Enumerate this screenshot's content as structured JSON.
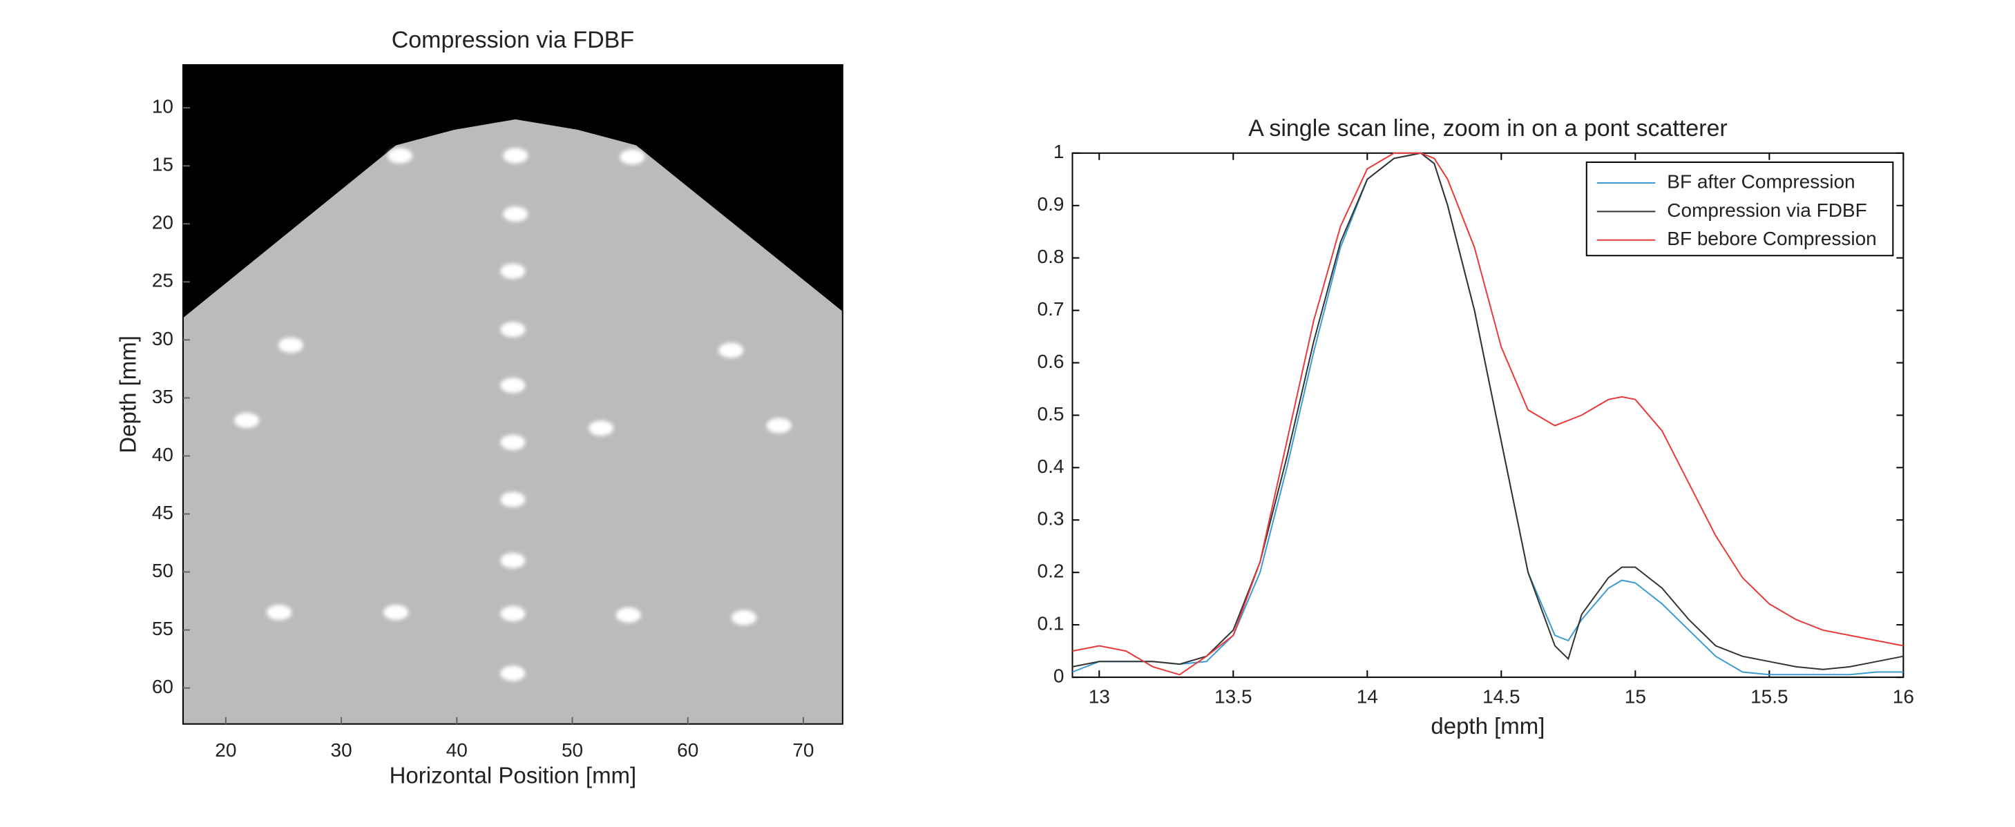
{
  "chart_data": [
    {
      "type": "image",
      "title": "Compression via FDBF",
      "xlabel": "Horizontal Position [mm]",
      "ylabel": "Depth [mm]",
      "xlim": [
        16.3,
        73.4
      ],
      "ylim": [
        63.1,
        6.3
      ],
      "xticks": [
        20,
        30,
        40,
        50,
        60,
        70
      ],
      "yticks": [
        10,
        15,
        20,
        25,
        30,
        35,
        40,
        45,
        50,
        55,
        60
      ]
    },
    {
      "type": "line",
      "title": "A single scan line, zoom in on a pont scatterer",
      "xlabel": "depth [mm]",
      "x": [
        12.9,
        13.0,
        13.1,
        13.2,
        13.3,
        13.4,
        13.5,
        13.6,
        13.7,
        13.8,
        13.9,
        14.0,
        14.1,
        14.2,
        14.25,
        14.3,
        14.4,
        14.5,
        14.6,
        14.7,
        14.75,
        14.8,
        14.9,
        14.95,
        15.0,
        15.1,
        15.2,
        15.3,
        15.4,
        15.5,
        15.6,
        15.7,
        15.8,
        15.9,
        16.0
      ],
      "series": [
        {
          "name": "BF after Compression",
          "color": "#3b9ad2",
          "values": [
            0.01,
            0.03,
            0.03,
            0.03,
            0.025,
            0.03,
            0.08,
            0.2,
            0.4,
            0.62,
            0.82,
            0.95,
            0.99,
            1.0,
            0.98,
            0.9,
            0.7,
            0.45,
            0.2,
            0.08,
            0.07,
            0.11,
            0.17,
            0.185,
            0.18,
            0.14,
            0.09,
            0.04,
            0.01,
            0.005,
            0.005,
            0.005,
            0.005,
            0.01,
            0.01
          ]
        },
        {
          "name": "Compression via FDBF",
          "color": "#333333",
          "values": [
            0.02,
            0.03,
            0.03,
            0.03,
            0.025,
            0.04,
            0.09,
            0.22,
            0.42,
            0.64,
            0.83,
            0.95,
            0.99,
            1.0,
            0.98,
            0.9,
            0.7,
            0.45,
            0.2,
            0.06,
            0.035,
            0.12,
            0.19,
            0.21,
            0.21,
            0.17,
            0.11,
            0.06,
            0.04,
            0.03,
            0.02,
            0.015,
            0.02,
            0.03,
            0.04
          ]
        },
        {
          "name": "BF bebore Compression",
          "color": "#e83a3a",
          "values": [
            0.05,
            0.06,
            0.05,
            0.02,
            0.005,
            0.04,
            0.08,
            0.22,
            0.45,
            0.68,
            0.86,
            0.97,
            1.0,
            1.0,
            0.99,
            0.95,
            0.82,
            0.63,
            0.51,
            0.48,
            0.49,
            0.5,
            0.53,
            0.535,
            0.53,
            0.47,
            0.37,
            0.27,
            0.19,
            0.14,
            0.11,
            0.09,
            0.08,
            0.07,
            0.06
          ]
        }
      ],
      "xlim": [
        12.9,
        16
      ],
      "ylim": [
        0,
        1
      ],
      "xticks": [
        13,
        13.5,
        14,
        14.5,
        15,
        15.5,
        16
      ],
      "yticks": [
        0,
        0.1,
        0.2,
        0.3,
        0.4,
        0.5,
        0.6,
        0.7,
        0.8,
        0.9,
        1
      ],
      "legend": "upper right"
    }
  ]
}
